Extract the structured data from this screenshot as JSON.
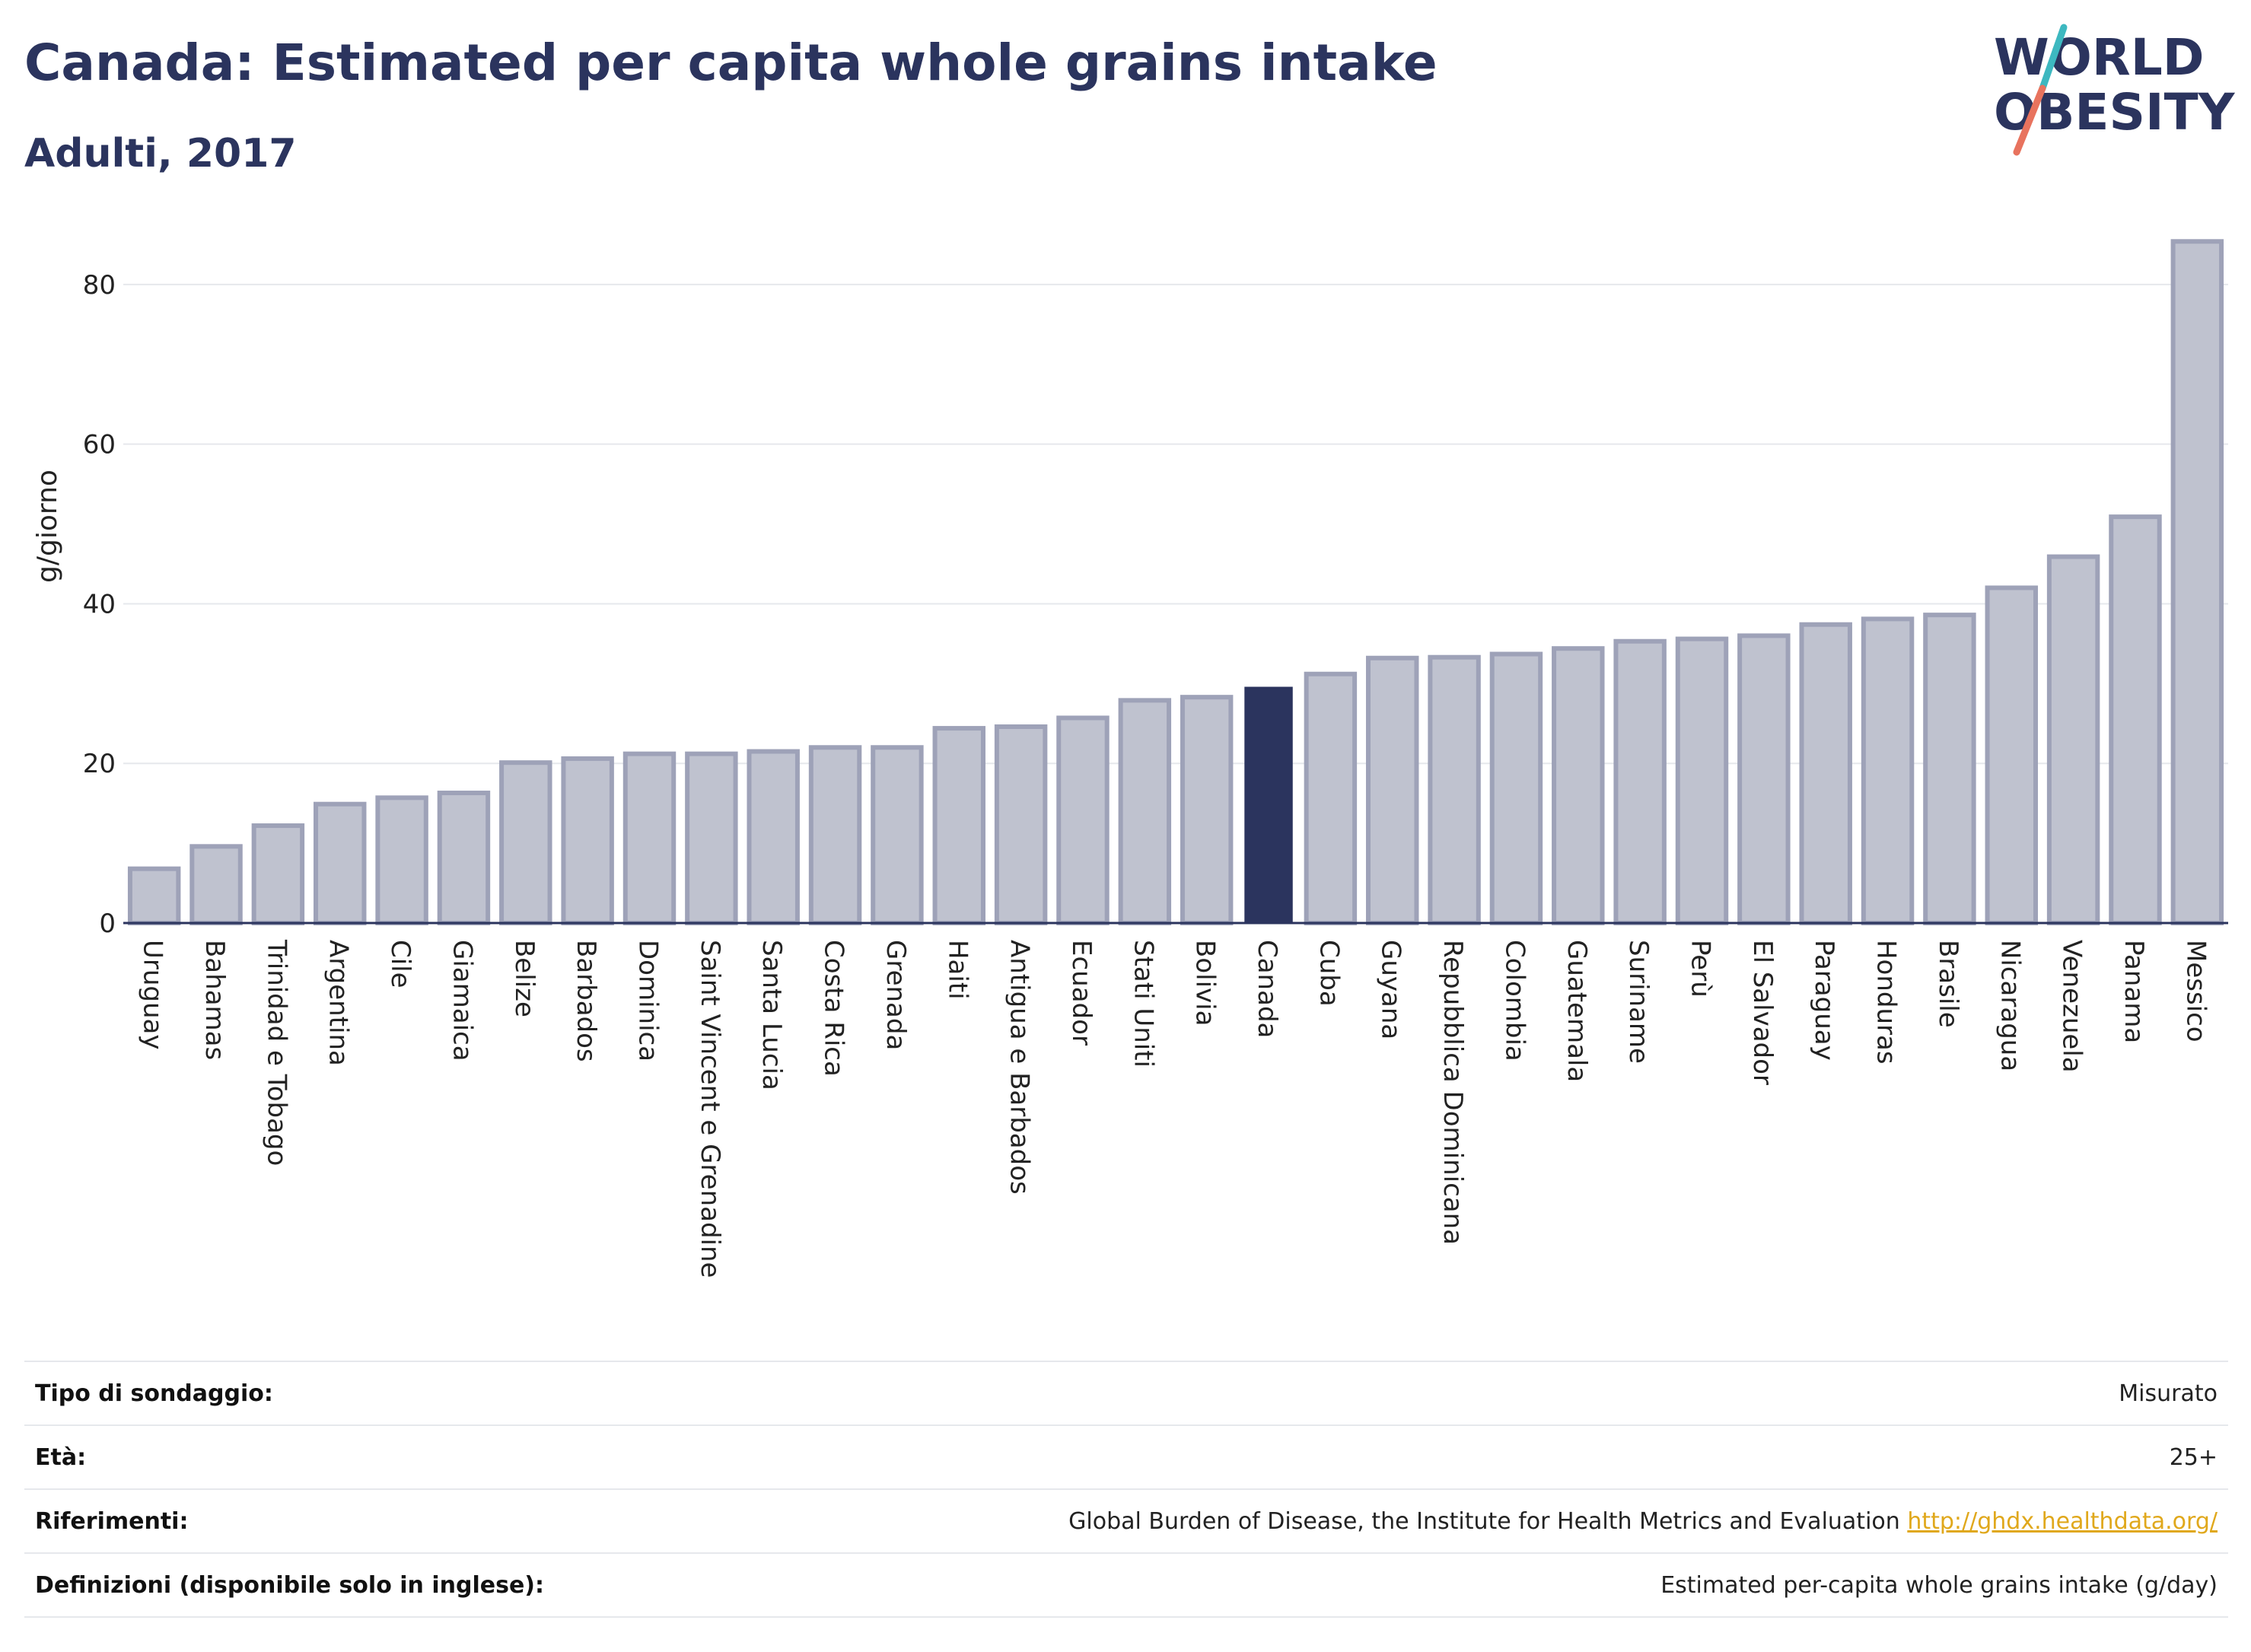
{
  "header": {
    "title": "Canada: Estimated per capita whole grains intake",
    "subtitle": "Adulti, 2017"
  },
  "logo": {
    "line1": "WORLD",
    "line2": "OBESITY",
    "colors": {
      "text": "#2b345e",
      "slash_top": "#3db8c0",
      "slash_bottom": "#e8735e"
    }
  },
  "chart_data": {
    "type": "bar",
    "title": "Canada: Estimated per capita whole grains intake",
    "subtitle": "Adulti, 2017",
    "xlabel": "",
    "ylabel": "g/giorno",
    "ylim": [
      0,
      88
    ],
    "yticks": [
      0,
      20,
      40,
      60,
      80
    ],
    "grid": true,
    "legend": "none",
    "highlight": "Canada",
    "colors": {
      "bar": "#bfc2cf",
      "bar_edge": "#9ea2b8",
      "highlight": "#2b345e",
      "grid": "#e6e8ec",
      "axis": "#2b345e"
    },
    "categories": [
      "Uruguay",
      "Bahamas",
      "Trinidad e Tobago",
      "Argentina",
      "Cile",
      "Giamaica",
      "Belize",
      "Barbados",
      "Dominica",
      "Saint Vincent e Grenadine",
      "Santa Lucia",
      "Costa Rica",
      "Grenada",
      "Haiti",
      "Antigua e Barbados",
      "Ecuador",
      "Stati Uniti",
      "Bolivia",
      "Canada",
      "Cuba",
      "Guyana",
      "Repubblica Dominicana",
      "Colombia",
      "Guatemala",
      "Suriname",
      "Perù",
      "El Salvador",
      "Paraguay",
      "Honduras",
      "Brasile",
      "Nicaragua",
      "Venezuela",
      "Panama",
      "Messico"
    ],
    "values": [
      6.8,
      9.6,
      12.2,
      14.9,
      15.7,
      16.3,
      20.1,
      20.6,
      21.2,
      21.2,
      21.5,
      22.0,
      22.0,
      24.4,
      24.6,
      25.7,
      27.9,
      28.3,
      29.6,
      31.2,
      33.2,
      33.3,
      33.7,
      34.4,
      35.3,
      35.6,
      36.0,
      37.4,
      38.1,
      38.6,
      42.0,
      45.9,
      50.9,
      85.4
    ]
  },
  "info": {
    "rows": [
      {
        "key": "Tipo di sondaggio:",
        "value": "Misurato",
        "link": ""
      },
      {
        "key": "Età:",
        "value": "25+",
        "link": ""
      },
      {
        "key": "Riferimenti:",
        "value": "Global Burden of Disease, the Institute for Health Metrics and Evaluation ",
        "link": "http://ghdx.healthdata.org/"
      },
      {
        "key": "Definizioni (disponibile solo in inglese):",
        "value": "Estimated per-capita whole grains intake (g/day)",
        "link": ""
      }
    ]
  }
}
